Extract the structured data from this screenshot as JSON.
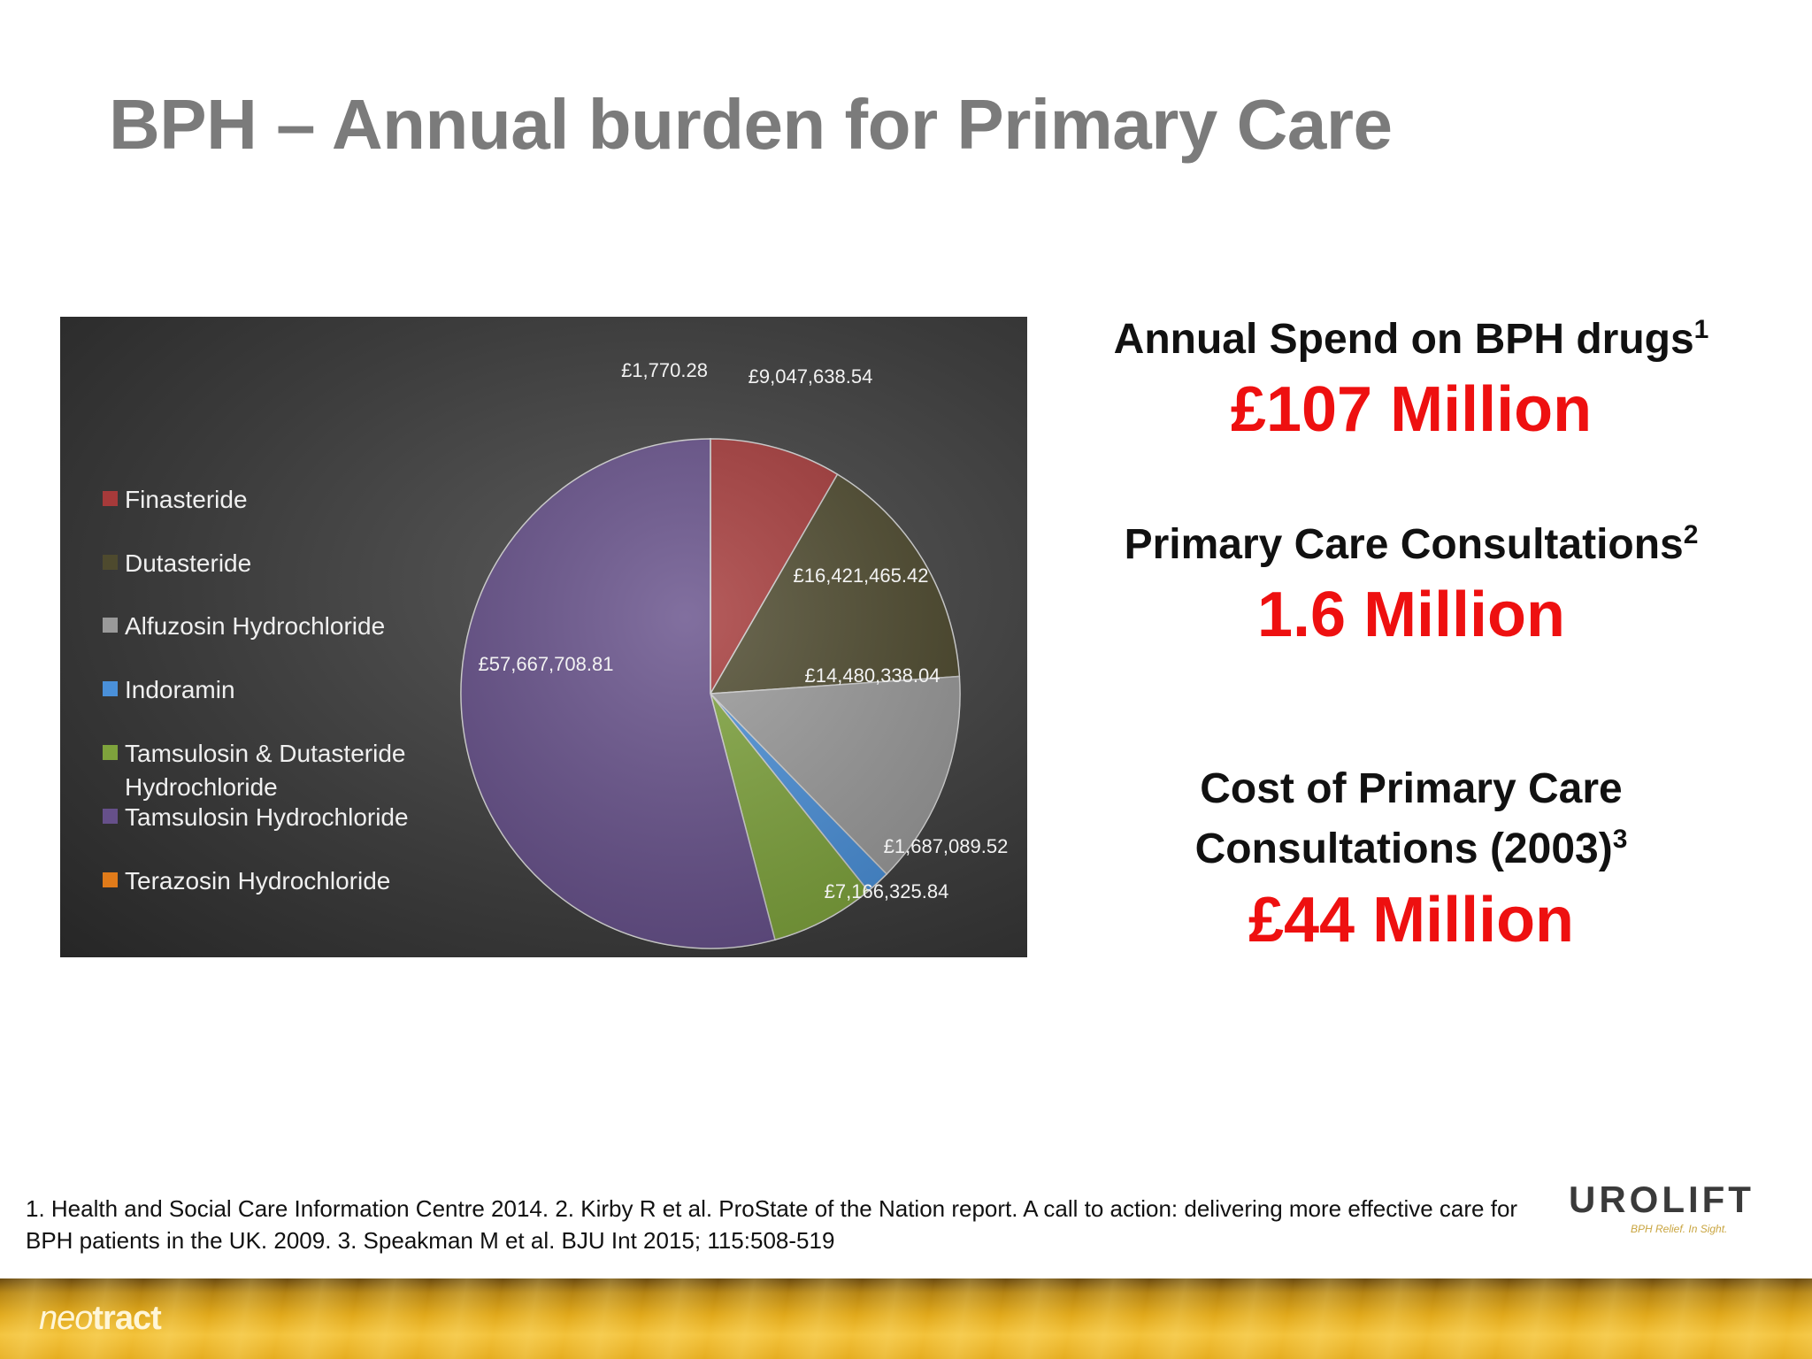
{
  "title": "BPH – Annual burden for Primary Care",
  "chart_data": {
    "type": "pie",
    "slices": [
      {
        "name": "Finasteride",
        "value": 9047638.54,
        "label": "£9,047,638.54",
        "color": "#a63a3a"
      },
      {
        "name": "Dutasteride",
        "value": 16421465.42,
        "label": "£16,421,465.42",
        "color": "#4e4a2e"
      },
      {
        "name": "Alfuzosin Hydrochloride",
        "value": 14480338.04,
        "label": "£14,480,338.04",
        "color": "#9a9a9a"
      },
      {
        "name": "Indoramin",
        "value": 1687089.52,
        "label": "£1,687,089.52",
        "color": "#4a90d9"
      },
      {
        "name": "Tamsulosin & Dutasteride Hydrochloride",
        "value": 7166325.84,
        "label": "£7,166,325.84",
        "color": "#7ea33c"
      },
      {
        "name": "Tamsulosin Hydrochloride",
        "value": 57667708.81,
        "label": "£57,667,708.81",
        "color": "#66508a"
      },
      {
        "name": "Terazosin Hydrochloride",
        "value": 1770.28,
        "label": "£1,770.28",
        "color": "#e07b1a"
      }
    ],
    "legend": [
      "Finasteride",
      "Dutasteride",
      "Alfuzosin Hydrochloride",
      "Indoramin",
      "Tamsulosin & Dutasteride Hydrochloride",
      "Tamsulosin Hydrochloride",
      "Terazosin Hydrochloride"
    ],
    "legend_position": "left"
  },
  "stats": [
    {
      "label": "Annual Spend on BPH drugs",
      "sup": "1",
      "value": "£107 Million"
    },
    {
      "label": "Primary Care Consultations",
      "sup": "2",
      "value": "1.6 Million"
    },
    {
      "label_line1": "Cost of Primary Care",
      "label_line2": "Consultations (2003)",
      "sup": "3",
      "value": "£44 Million"
    }
  ],
  "references": "1. Health and Social Care Information Centre 2014. 2. Kirby R et al. ProState of the Nation report. A call to action: delivering more effective care for BPH patients in the UK. 2009. 3. Speakman M et al. BJU Int 2015; 115:508-519",
  "brand_logo": {
    "word": "UROLIFT",
    "tagline": "BPH Relief. In Sight."
  },
  "footer_logo": {
    "part1": "neo",
    "part2": "tract"
  }
}
